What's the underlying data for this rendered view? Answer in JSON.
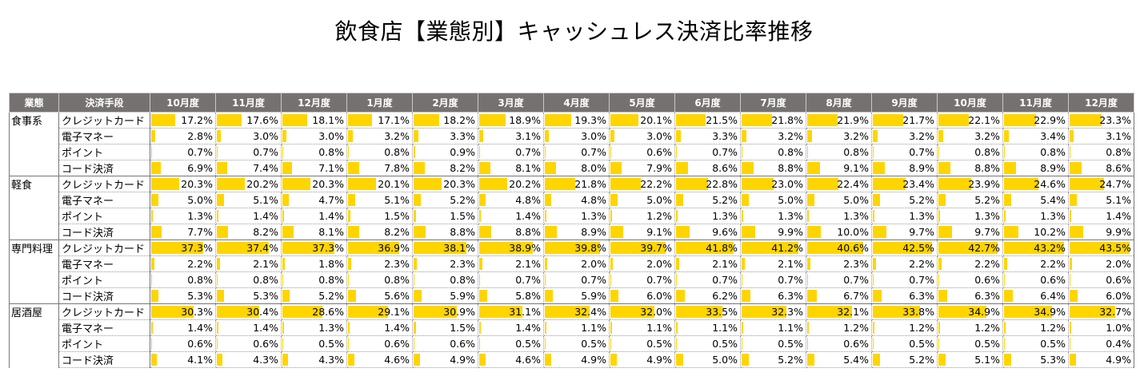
{
  "title": "飲食店【業態別】キャッシュレス決済比率推移",
  "colors": {
    "header_bg": "#767171",
    "bar": "#ffd500"
  },
  "chart_data": {
    "type": "table",
    "title": "飲食店【業態別】キャッシュレス決済比率推移",
    "header": [
      "業態",
      "決済手段",
      "10月度",
      "11月度",
      "12月度",
      "1月度",
      "2月度",
      "3月度",
      "4月度",
      "5月度",
      "6月度",
      "7月度",
      "8月度",
      "9月度",
      "10月度",
      "11月度",
      "12月度"
    ],
    "bar_max": 45,
    "groups": [
      {
        "name": "食事系",
        "rows": [
          {
            "method": "クレジットカード",
            "values": [
              "17.2%",
              "17.6%",
              "18.1%",
              "17.1%",
              "18.2%",
              "18.9%",
              "19.3%",
              "20.1%",
              "21.5%",
              "21.8%",
              "21.9%",
              "21.7%",
              "22.1%",
              "22.9%",
              "23.3%"
            ]
          },
          {
            "method": "電子マネー",
            "values": [
              "2.8%",
              "3.0%",
              "3.0%",
              "3.2%",
              "3.3%",
              "3.1%",
              "3.0%",
              "3.0%",
              "3.3%",
              "3.2%",
              "3.2%",
              "3.2%",
              "3.2%",
              "3.4%",
              "3.1%"
            ]
          },
          {
            "method": "ポイント",
            "values": [
              "0.7%",
              "0.7%",
              "0.8%",
              "0.8%",
              "0.9%",
              "0.7%",
              "0.7%",
              "0.6%",
              "0.7%",
              "0.8%",
              "0.8%",
              "0.7%",
              "0.8%",
              "0.8%",
              "0.8%"
            ]
          },
          {
            "method": "コード決済",
            "values": [
              "6.9%",
              "7.4%",
              "7.1%",
              "7.8%",
              "8.2%",
              "8.1%",
              "8.0%",
              "7.9%",
              "8.6%",
              "8.8%",
              "9.1%",
              "8.9%",
              "8.8%",
              "8.9%",
              "8.6%"
            ]
          }
        ]
      },
      {
        "name": "軽食",
        "rows": [
          {
            "method": "クレジットカード",
            "values": [
              "20.3%",
              "20.2%",
              "20.3%",
              "20.1%",
              "20.3%",
              "20.2%",
              "21.8%",
              "22.2%",
              "22.8%",
              "23.0%",
              "22.4%",
              "23.4%",
              "23.9%",
              "24.6%",
              "24.7%"
            ]
          },
          {
            "method": "電子マネー",
            "values": [
              "5.0%",
              "5.1%",
              "4.7%",
              "5.1%",
              "5.2%",
              "4.8%",
              "4.8%",
              "5.0%",
              "5.2%",
              "5.0%",
              "5.0%",
              "5.2%",
              "5.2%",
              "5.4%",
              "5.1%"
            ]
          },
          {
            "method": "ポイント",
            "values": [
              "1.3%",
              "1.4%",
              "1.4%",
              "1.5%",
              "1.5%",
              "1.4%",
              "1.3%",
              "1.2%",
              "1.3%",
              "1.3%",
              "1.3%",
              "1.3%",
              "1.3%",
              "1.3%",
              "1.4%"
            ]
          },
          {
            "method": "コード決済",
            "values": [
              "7.7%",
              "8.2%",
              "8.1%",
              "8.2%",
              "8.8%",
              "8.8%",
              "8.9%",
              "9.1%",
              "9.6%",
              "9.9%",
              "10.0%",
              "9.7%",
              "9.7%",
              "10.2%",
              "9.9%"
            ]
          }
        ]
      },
      {
        "name": "専門料理",
        "rows": [
          {
            "method": "クレジットカード",
            "values": [
              "37.3%",
              "37.4%",
              "37.3%",
              "36.9%",
              "38.1%",
              "38.9%",
              "39.8%",
              "39.7%",
              "41.8%",
              "41.2%",
              "40.6%",
              "42.5%",
              "42.7%",
              "43.2%",
              "43.5%"
            ]
          },
          {
            "method": "電子マネー",
            "values": [
              "2.2%",
              "2.1%",
              "1.8%",
              "2.3%",
              "2.3%",
              "2.1%",
              "2.0%",
              "2.0%",
              "2.1%",
              "2.1%",
              "2.3%",
              "2.2%",
              "2.2%",
              "2.2%",
              "2.0%"
            ]
          },
          {
            "method": "ポイント",
            "values": [
              "0.8%",
              "0.8%",
              "0.8%",
              "0.8%",
              "0.8%",
              "0.7%",
              "0.7%",
              "0.7%",
              "0.7%",
              "0.7%",
              "0.7%",
              "0.7%",
              "0.6%",
              "0.6%",
              "0.6%"
            ]
          },
          {
            "method": "コード決済",
            "values": [
              "5.3%",
              "5.3%",
              "5.2%",
              "5.6%",
              "5.9%",
              "5.8%",
              "5.9%",
              "6.0%",
              "6.2%",
              "6.3%",
              "6.7%",
              "6.3%",
              "6.3%",
              "6.4%",
              "6.0%"
            ]
          }
        ]
      },
      {
        "name": "居酒屋",
        "rows": [
          {
            "method": "クレジットカード",
            "values": [
              "30.3%",
              "30.4%",
              "28.6%",
              "29.1%",
              "30.9%",
              "31.1%",
              "32.4%",
              "32.0%",
              "33.5%",
              "32.3%",
              "32.1%",
              "33.8%",
              "34.9%",
              "34.9%",
              "32.7%"
            ]
          },
          {
            "method": "電子マネー",
            "values": [
              "1.4%",
              "1.4%",
              "1.3%",
              "1.4%",
              "1.5%",
              "1.4%",
              "1.1%",
              "1.1%",
              "1.1%",
              "1.1%",
              "1.2%",
              "1.2%",
              "1.2%",
              "1.2%",
              "1.0%"
            ]
          },
          {
            "method": "ポイント",
            "values": [
              "0.6%",
              "0.6%",
              "0.5%",
              "0.6%",
              "0.6%",
              "0.5%",
              "0.5%",
              "0.5%",
              "0.5%",
              "0.5%",
              "0.6%",
              "0.5%",
              "0.5%",
              "0.5%",
              "0.4%"
            ]
          },
          {
            "method": "コード決済",
            "values": [
              "4.1%",
              "4.3%",
              "4.3%",
              "4.6%",
              "4.9%",
              "4.6%",
              "4.9%",
              "4.9%",
              "5.0%",
              "5.2%",
              "5.4%",
              "5.2%",
              "5.1%",
              "5.3%",
              "4.9%"
            ]
          }
        ]
      }
    ]
  }
}
